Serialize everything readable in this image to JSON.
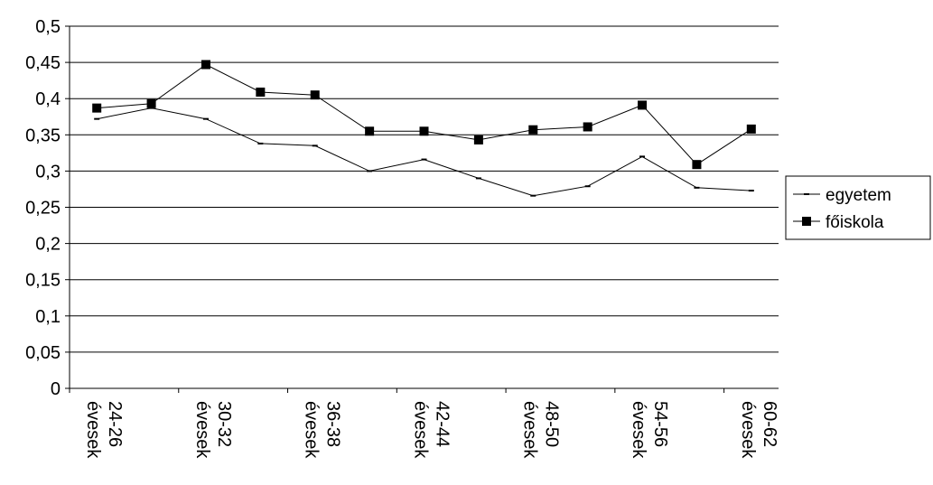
{
  "chart_data": {
    "type": "line",
    "categories": [
      {
        "line1": "24-26",
        "line2": "évesek"
      },
      {
        "line1": "",
        "line2": ""
      },
      {
        "line1": "30-32",
        "line2": "évesek"
      },
      {
        "line1": "",
        "line2": ""
      },
      {
        "line1": "36-38",
        "line2": "évesek"
      },
      {
        "line1": "",
        "line2": ""
      },
      {
        "line1": "42-44",
        "line2": "évesek"
      },
      {
        "line1": "",
        "line2": ""
      },
      {
        "line1": "48-50",
        "line2": "évesek"
      },
      {
        "line1": "",
        "line2": ""
      },
      {
        "line1": "54-56",
        "line2": "évesek"
      },
      {
        "line1": "",
        "line2": ""
      },
      {
        "line1": "60-62",
        "line2": "évesek"
      }
    ],
    "series": [
      {
        "name": "egyetem",
        "marker": "dash",
        "values": [
          0.372,
          0.387,
          0.372,
          0.338,
          0.335,
          0.3,
          0.316,
          0.29,
          0.266,
          0.279,
          0.32,
          0.277,
          0.273
        ]
      },
      {
        "name": "főiskola",
        "marker": "square",
        "values": [
          0.387,
          0.393,
          0.447,
          0.409,
          0.405,
          0.355,
          0.355,
          0.343,
          0.357,
          0.361,
          0.391,
          0.309,
          0.358
        ]
      }
    ],
    "yticks": [
      "0",
      "0,05",
      "0,1",
      "0,15",
      "0,2",
      "0,25",
      "0,3",
      "0,35",
      "0,4",
      "0,45",
      "0,5"
    ],
    "ylim": [
      0,
      0.5
    ],
    "grid": true,
    "legend_position": "right",
    "title": "",
    "xlabel": "",
    "ylabel": ""
  }
}
